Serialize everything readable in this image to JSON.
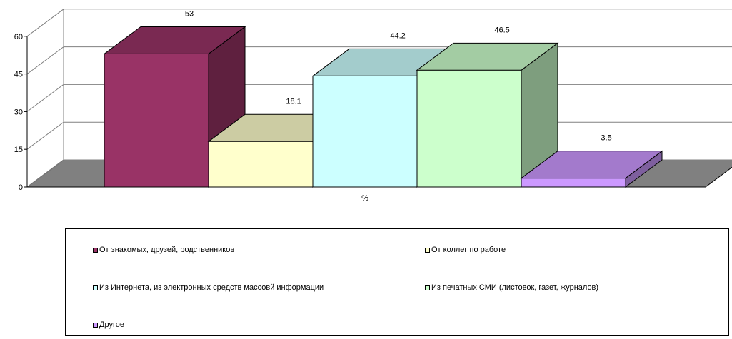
{
  "chart_data": {
    "type": "bar",
    "style": "3d",
    "categories": [
      "%"
    ],
    "xlabel": "%",
    "ylim": [
      0,
      60
    ],
    "yticks": [
      0,
      15,
      30,
      45,
      60
    ],
    "grid": true,
    "legend_position": "bottom",
    "series": [
      {
        "name": "От знакомых, друзей, родственников",
        "values": [
          53
        ],
        "label": "53",
        "color": "#993366"
      },
      {
        "name": "От коллег по работе",
        "values": [
          18.1
        ],
        "label": "18.1",
        "color": "#ffffcc"
      },
      {
        "name": "Из Интернета, из электронных средств массовй информации",
        "values": [
          44.2
        ],
        "label": "44.2",
        "color": "#ccffff"
      },
      {
        "name": "Из печатных СМИ (листовок, газет, журналов)",
        "values": [
          46.5
        ],
        "label": "46.5",
        "color": "#ccffcc"
      },
      {
        "name": "Другое",
        "values": [
          3.5
        ],
        "label": "3.5",
        "color": "#cc99ff"
      }
    ]
  }
}
